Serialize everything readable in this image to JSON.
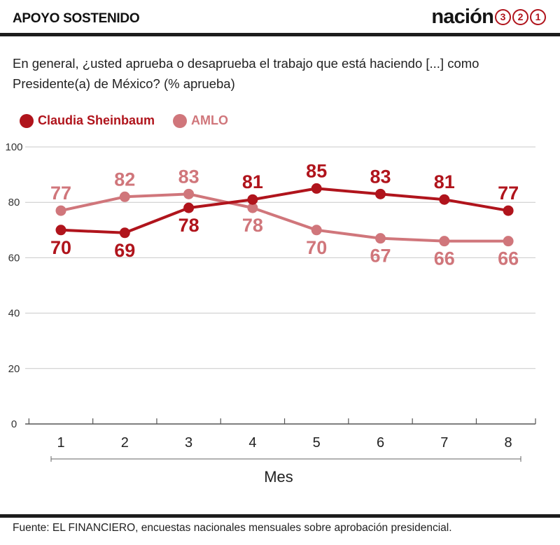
{
  "header": {
    "title": "APOYO SOSTENIDO",
    "brand_word": "nación",
    "brand_digits": [
      "3",
      "2",
      "1"
    ]
  },
  "subtitle": "En general, ¿usted aprueba o desaprueba el trabajo que está haciendo [...] como Presidente(a) de México? (% aprueba)",
  "footer": "Fuente: EL FINANCIERO, encuestas nacionales mensuales sobre aprobación presidencial.",
  "colors": {
    "sheinbaum": "#b0141c",
    "amlo": "#d0767b",
    "axis": "#555555",
    "grid": "#c9c9c9"
  },
  "chart_data": {
    "type": "line",
    "x": [
      "1",
      "2",
      "3",
      "4",
      "5",
      "6",
      "7",
      "8"
    ],
    "xlabel": "Mes",
    "ylabel": "",
    "ylim": [
      0,
      100
    ],
    "yticks": [
      "0",
      "20",
      "40",
      "60",
      "80",
      "100"
    ],
    "grid": true,
    "legend_position": "top-left",
    "series": [
      {
        "name": "Claudia Sheinbaum",
        "color": "#b0141c",
        "values": [
          70,
          69,
          78,
          81,
          85,
          83,
          81,
          77
        ],
        "labels": [
          "70",
          "69",
          "78",
          "81",
          "85",
          "83",
          "81",
          "77"
        ],
        "label_side": [
          "below",
          "below",
          "below",
          "above",
          "above",
          "above",
          "above",
          "above"
        ]
      },
      {
        "name": "AMLO",
        "color": "#d0767b",
        "values": [
          77,
          82,
          83,
          78,
          70,
          67,
          66,
          66
        ],
        "labels": [
          "77",
          "82",
          "83",
          "78",
          "70",
          "67",
          "66",
          "66"
        ],
        "label_side": [
          "above",
          "above",
          "above",
          "below",
          "below",
          "below",
          "below",
          "below"
        ]
      }
    ]
  }
}
